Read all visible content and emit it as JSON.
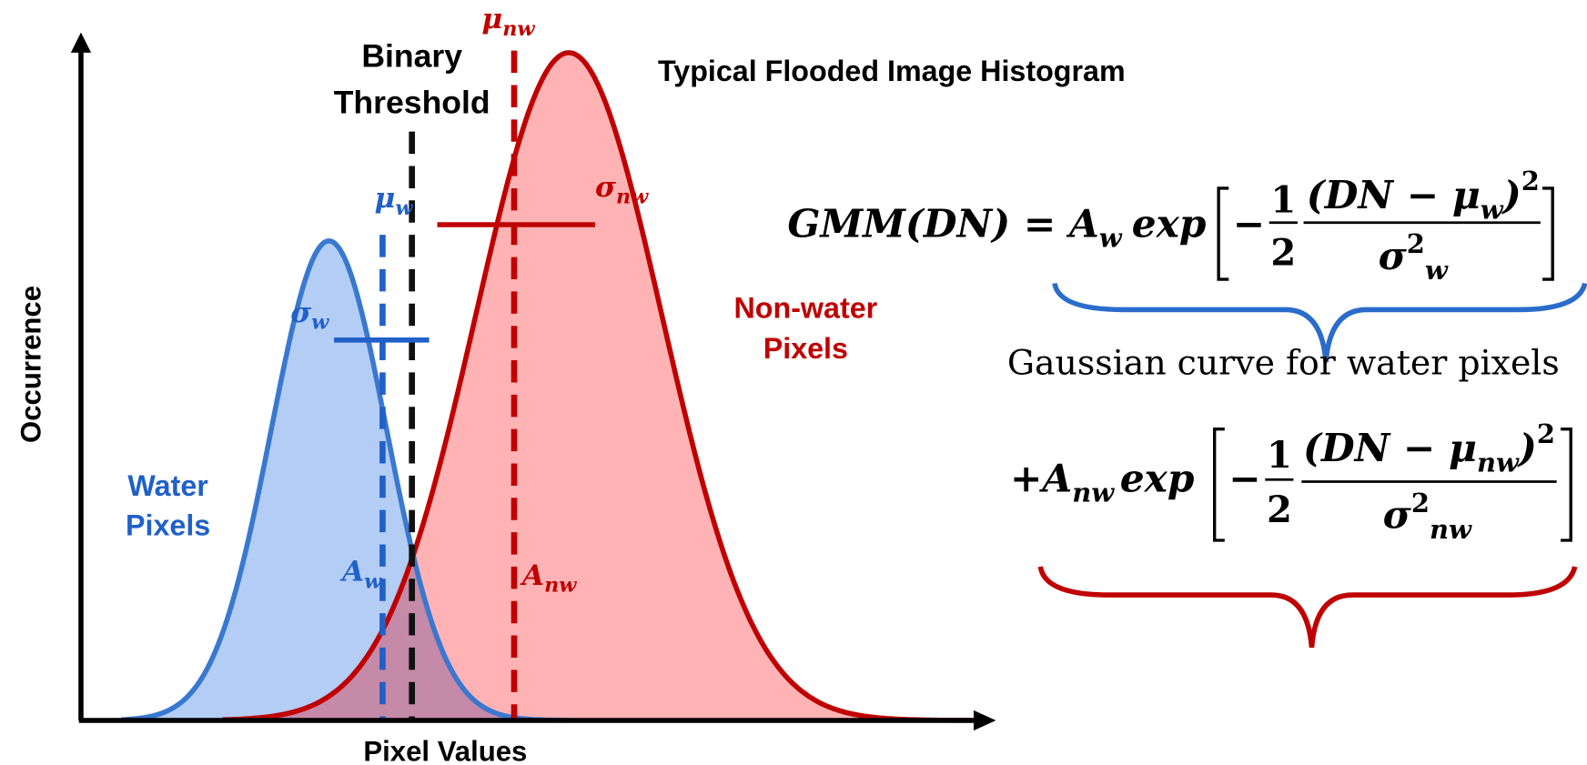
{
  "title": "Typical Flooded Image Histogram",
  "axes": {
    "y_label": "Occurrence",
    "x_label": "Pixel Values"
  },
  "threshold_label": [
    "Binary",
    "Threshold"
  ],
  "labels": {
    "mu_nw": {
      "symbol": "μ",
      "sub": "nw"
    },
    "sigma_nw": {
      "symbol": "σ",
      "sub": "nw"
    },
    "mu_w": {
      "symbol": "μ",
      "sub": "w"
    },
    "sigma_w": {
      "symbol": "σ",
      "sub": "w"
    },
    "a_w": {
      "symbol": "A",
      "sub": "w"
    },
    "a_nw": {
      "symbol": "A",
      "sub": "nw"
    }
  },
  "classes": {
    "water": [
      "Water",
      "Pixels"
    ],
    "non_water": [
      "Non-water",
      "Pixels"
    ]
  },
  "equation": {
    "line1": {
      "lhs": "GMM(DN) = ",
      "coef": "A",
      "coef_sub": "w",
      "func": "exp",
      "minus": "−",
      "half_num": "1",
      "half_den": "2",
      "num": "(DN − μ",
      "num_sub": "w",
      "num_close": ")",
      "num_sup": "2",
      "den": "σ",
      "den_sup": "2",
      "den_sub": "w"
    },
    "caption": "Gaussian curve for water pixels",
    "line2": {
      "coef": "+A",
      "coef_sub": "nw",
      "func": "exp",
      "minus": "−",
      "half_num": "1",
      "half_den": "2",
      "num": "(DN − μ",
      "num_sub": "nw",
      "num_close": ")",
      "num_sup": "2",
      "den": "σ",
      "den_sup": "2",
      "den_sub": "nw"
    }
  }
}
